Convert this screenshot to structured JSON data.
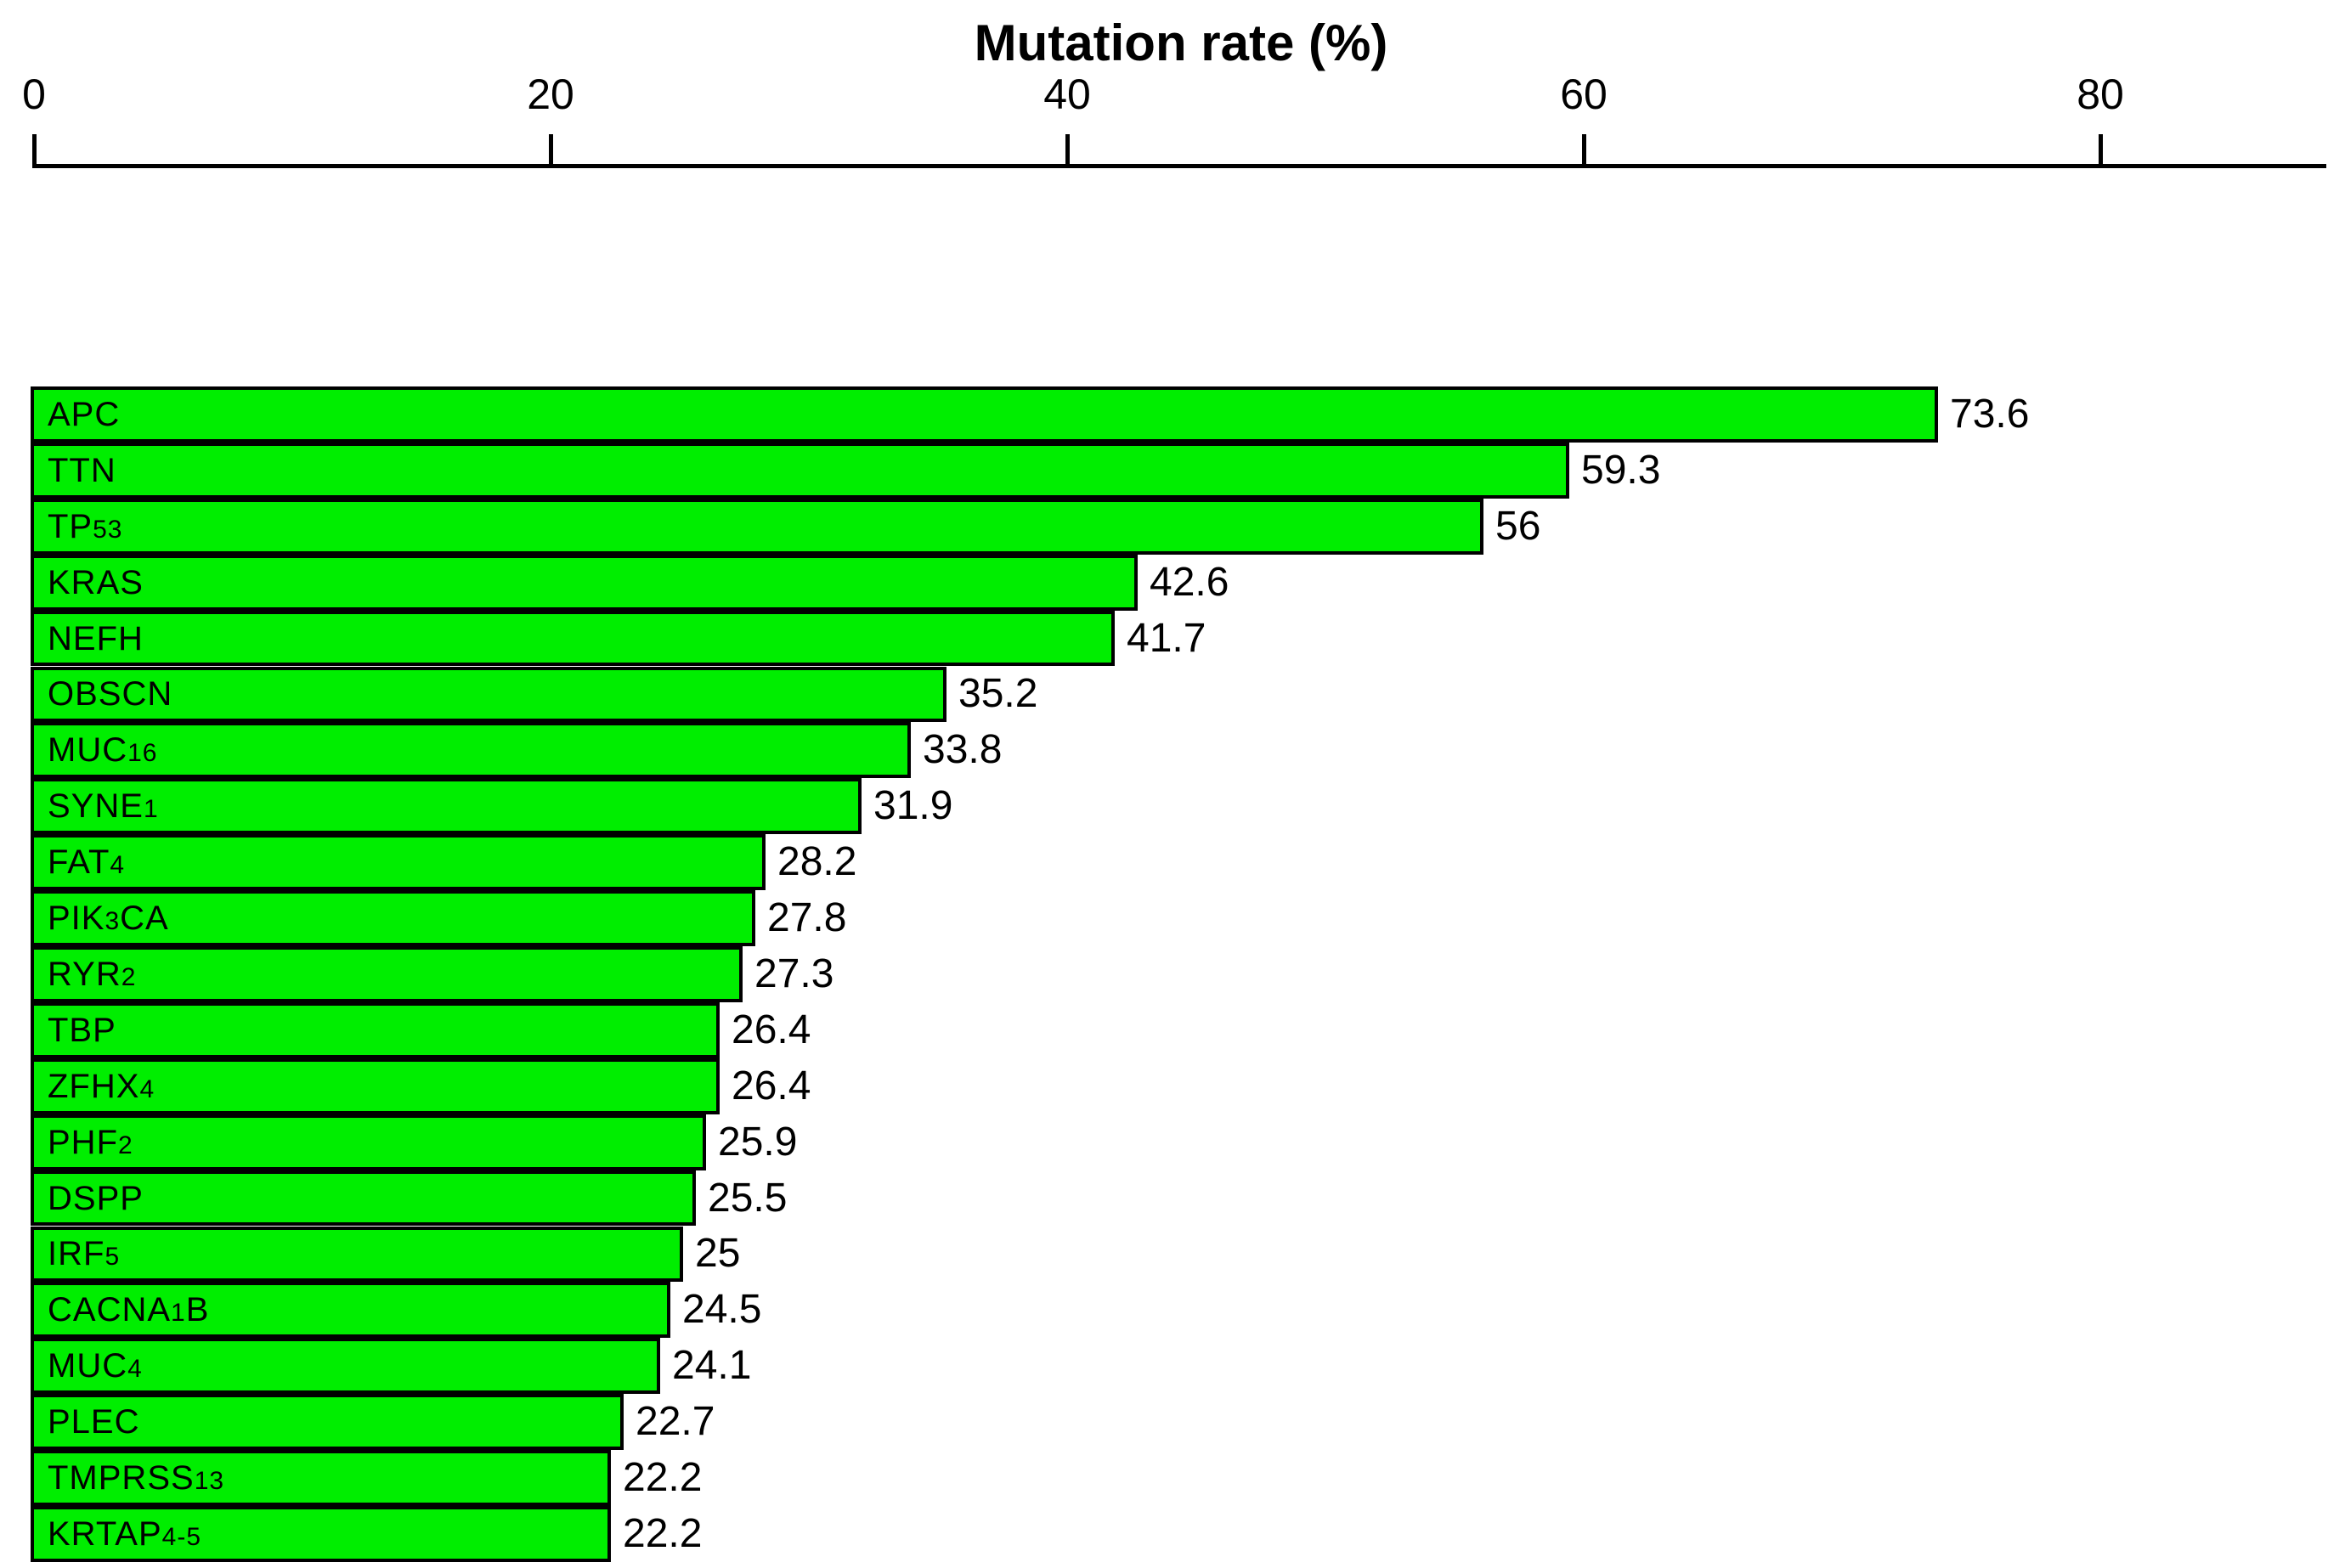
{
  "chart_data": {
    "type": "bar",
    "orientation": "horizontal",
    "title": "Mutation rate (%)",
    "axis_position": "top",
    "x_ticks": [
      0,
      20,
      40,
      60,
      80
    ],
    "xlim": [
      0,
      88.6
    ],
    "grid": false,
    "legend": false,
    "bar_color": "#00ee00",
    "bar_border_color": "#000000",
    "text_color": "#000000",
    "categories": [
      "APC",
      "TTN",
      "TP53",
      "KRAS",
      "NEFH",
      "OBSCN",
      "MUC16",
      "SYNE1",
      "FAT4",
      "PIK3CA",
      "RYR2",
      "TBP",
      "ZFHX4",
      "PHF2",
      "DSPP",
      "IRF5",
      "CACNA1B",
      "MUC4",
      "PLEC",
      "TMPRSS13",
      "KRTAP4-5"
    ],
    "values": [
      73.6,
      59.3,
      56,
      42.6,
      41.7,
      35.2,
      33.8,
      31.9,
      28.2,
      27.8,
      27.3,
      26.4,
      26.4,
      25.9,
      25.5,
      25,
      24.5,
      24.1,
      22.7,
      22.2,
      22.2
    ],
    "value_labels": [
      "73.6",
      "59.3",
      "56",
      "42.6",
      "41.7",
      "35.2",
      "33.8",
      "31.9",
      "28.2",
      "27.8",
      "27.3",
      "26.4",
      "26.4",
      "25.9",
      "25.5",
      "25",
      "24.5",
      "24.1",
      "22.7",
      "22.2",
      "22.2"
    ]
  }
}
